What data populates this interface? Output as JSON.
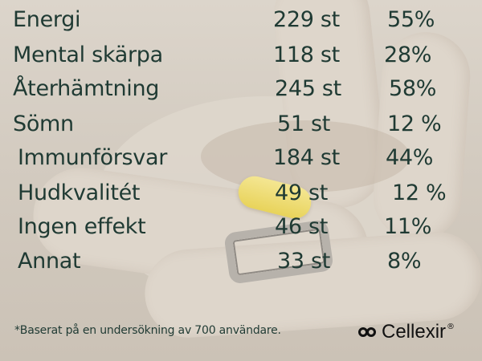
{
  "rows": [
    {
      "label": "Energi",
      "count": "229 st",
      "percent": "55%"
    },
    {
      "label": "Mental skärpa",
      "count": "118 st",
      "percent": "28%"
    },
    {
      "label": "Återhämtning",
      "count": "245 st",
      "percent": "58%"
    },
    {
      "label": "Sömn",
      "count": "51 st",
      "percent": "12 %"
    },
    {
      "label": "Immunförsvar",
      "count": "184 st",
      "percent": "44%"
    },
    {
      "label": "Hudkvalitét",
      "count": "49 st",
      "percent": "12 %"
    },
    {
      "label": "Ingen effekt",
      "count": "46 st",
      "percent": "11%"
    },
    {
      "label": "Annat",
      "count": "33 st",
      "percent": "8%"
    }
  ],
  "footnote": "*Baserat på en undersökning av 700 användare.",
  "brand": {
    "name": "Cellexir",
    "mark": "®",
    "logo_icon": "infinity-rings-icon"
  },
  "colors": {
    "text": "#1f3a33",
    "capsule": "#e8d35a"
  }
}
